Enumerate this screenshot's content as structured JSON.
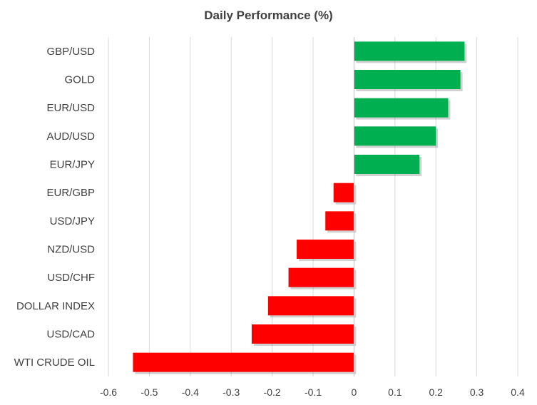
{
  "chart_data": {
    "type": "bar",
    "orientation": "horizontal",
    "title": "Daily Performance (%)",
    "xlabel": "",
    "ylabel": "",
    "xlim": [
      -0.6,
      0.4
    ],
    "x_ticks": [
      "-0.6",
      "-0.5",
      "-0.4",
      "-0.3",
      "-0.2",
      "-0.1",
      "0",
      "0.1",
      "0.2",
      "0.3",
      "0.4"
    ],
    "grid": "vertical",
    "legend": "none",
    "categories": [
      "GBP/USD",
      "GOLD",
      "EUR/USD",
      "AUD/USD",
      "EUR/JPY",
      "EUR/GBP",
      "USD/JPY",
      "NZD/USD",
      "USD/CHF",
      "DOLLAR INDEX",
      "USD/CAD",
      "WTI CRUDE OIL"
    ],
    "values": [
      0.27,
      0.26,
      0.23,
      0.2,
      0.16,
      -0.05,
      -0.07,
      -0.14,
      -0.16,
      -0.21,
      -0.25,
      -0.54
    ],
    "colors": {
      "positive": "#00b050",
      "negative": "#ff0000",
      "grid": "#d9d9d9",
      "axis": "#bfbfbf",
      "text": "#404040"
    }
  }
}
